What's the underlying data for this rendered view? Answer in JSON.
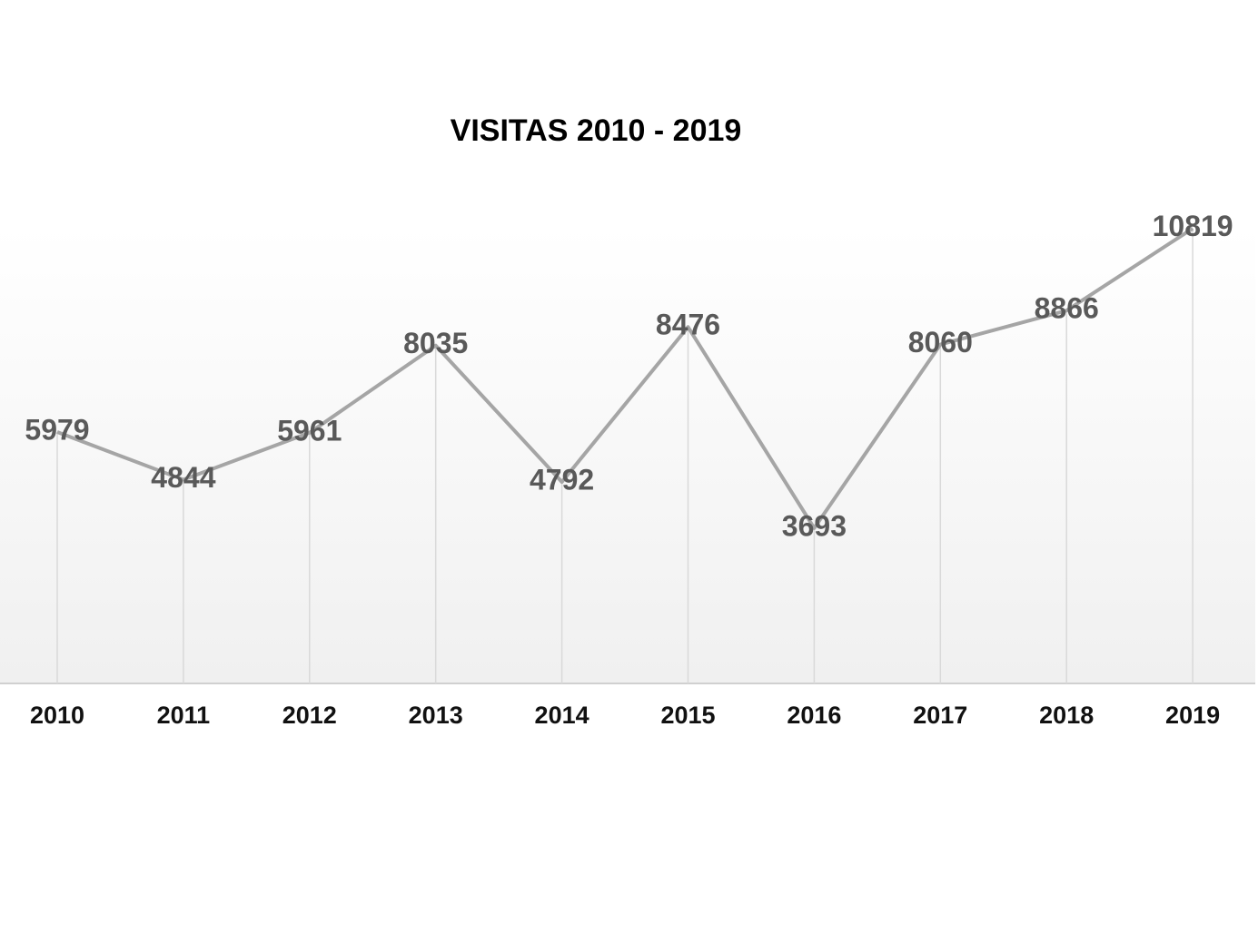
{
  "chart_data": {
    "type": "line",
    "title": "VISITAS 2010 - 2019",
    "categories": [
      "2010",
      "2011",
      "2012",
      "2013",
      "2014",
      "2015",
      "2016",
      "2017",
      "2018",
      "2019"
    ],
    "series": [
      {
        "name": "Visitas",
        "color": "#a5a5a5",
        "values": [
          5979,
          4844,
          5961,
          8035,
          4792,
          8476,
          3693,
          8060,
          8866,
          10819
        ]
      }
    ],
    "ylim": [
      0,
      12000
    ],
    "drop_lines": true
  }
}
